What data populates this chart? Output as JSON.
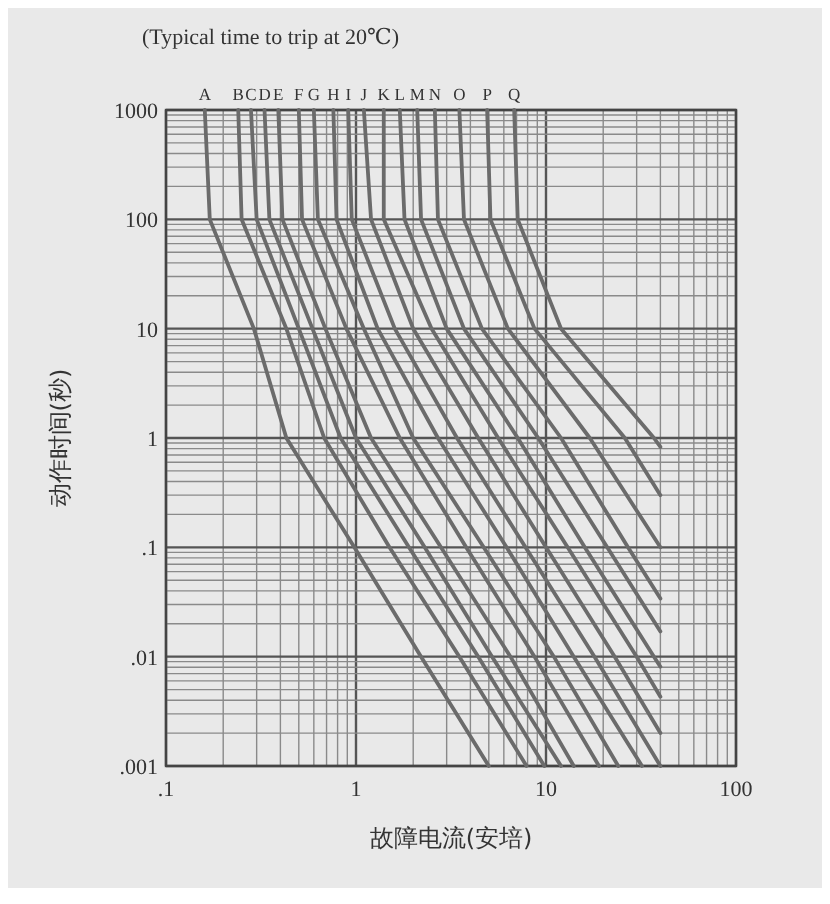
{
  "chart_data": {
    "type": "line",
    "title": "(Typical time to trip at 20℃)",
    "xlabel": "故障电流(安培)",
    "ylabel": "动作时间(秒)",
    "log": "xy",
    "grid": true,
    "xlim": [
      0.1,
      100
    ],
    "ylim": [
      0.001,
      1000
    ],
    "xticks": [
      {
        "value": 0.1,
        "label": ".1"
      },
      1,
      10,
      100
    ],
    "yticks": [
      {
        "value": 0.001,
        "label": ".001"
      },
      {
        "value": 0.01,
        "label": ".01"
      },
      {
        "value": 0.1,
        "label": ".1"
      },
      1,
      10,
      100,
      1000
    ],
    "series": [
      {
        "name": "A",
        "color": "#6b6b6b",
        "x": [
          0.16,
          0.17,
          0.29,
          0.43,
          0.98,
          2.2,
          5.0
        ],
        "values": [
          1000,
          100,
          10,
          1,
          0.1,
          0.01,
          0.001
        ]
      },
      {
        "name": "B",
        "color": "#6b6b6b",
        "x": [
          0.24,
          0.25,
          0.43,
          0.68,
          1.5,
          3.5,
          7.9
        ],
        "values": [
          1000,
          100,
          10,
          1,
          0.1,
          0.01,
          0.001
        ]
      },
      {
        "name": "C",
        "color": "#6b6b6b",
        "x": [
          0.28,
          0.3,
          0.5,
          0.83,
          1.9,
          4.4,
          9.8
        ],
        "values": [
          1000,
          100,
          10,
          1,
          0.1,
          0.01,
          0.001
        ]
      },
      {
        "name": "D",
        "color": "#6b6b6b",
        "x": [
          0.33,
          0.35,
          0.59,
          1.0,
          2.3,
          5.2,
          12
        ],
        "values": [
          1000,
          100,
          10,
          1,
          0.1,
          0.01,
          0.001
        ]
      },
      {
        "name": "E",
        "color": "#6b6b6b",
        "x": [
          0.39,
          0.41,
          0.69,
          1.2,
          2.8,
          6.5,
          14
        ],
        "values": [
          1000,
          100,
          10,
          1,
          0.1,
          0.01,
          0.001
        ]
      },
      {
        "name": "F",
        "color": "#6b6b6b",
        "x": [
          0.5,
          0.52,
          0.89,
          1.7,
          3.8,
          8.7,
          19
        ],
        "values": [
          1000,
          100,
          10,
          1,
          0.1,
          0.01,
          0.001
        ]
      },
      {
        "name": "G",
        "color": "#6b6b6b",
        "x": [
          0.6,
          0.63,
          1.1,
          2.0,
          4.7,
          11,
          24
        ],
        "values": [
          1000,
          100,
          10,
          1,
          0.1,
          0.01,
          0.001
        ]
      },
      {
        "name": "H",
        "color": "#6b6b6b",
        "x": [
          0.76,
          0.79,
          1.3,
          2.7,
          6.2,
          14,
          32
        ],
        "values": [
          1000,
          100,
          10,
          1,
          0.1,
          0.01,
          0.001
        ]
      },
      {
        "name": "I",
        "color": "#6b6b6b",
        "x": [
          0.91,
          0.95,
          1.6,
          3.4,
          7.8,
          18,
          40
        ],
        "values": [
          1000,
          100,
          10,
          1,
          0.1,
          0.01,
          0.001
        ]
      },
      {
        "name": "J",
        "color": "#6b6b6b",
        "x": [
          1.1,
          1.2,
          2.0,
          4.4,
          10,
          23,
          40
        ],
        "values": [
          1000,
          100,
          10,
          1,
          0.1,
          0.01,
          0.002
        ]
      },
      {
        "name": "K",
        "color": "#6b6b6b",
        "x": [
          1.4,
          1.4,
          2.5,
          5.6,
          13,
          30,
          40
        ],
        "values": [
          1000,
          100,
          10,
          1,
          0.1,
          0.01,
          0.0043
        ]
      },
      {
        "name": "L",
        "color": "#6b6b6b",
        "x": [
          1.7,
          1.8,
          3.0,
          7.1,
          16,
          37,
          40
        ],
        "values": [
          1000,
          100,
          10,
          1,
          0.1,
          0.01,
          0.0081
        ]
      },
      {
        "name": "M",
        "color": "#6b6b6b",
        "x": [
          2.1,
          2.2,
          3.7,
          9.1,
          21,
          40
        ],
        "values": [
          1000,
          100,
          10,
          1,
          0.1,
          0.017
        ]
      },
      {
        "name": "N",
        "color": "#6b6b6b",
        "x": [
          2.6,
          2.7,
          4.6,
          12,
          27,
          40
        ],
        "values": [
          1000,
          100,
          10,
          1,
          0.1,
          0.034
        ]
      },
      {
        "name": "O",
        "color": "#6b6b6b",
        "x": [
          3.5,
          3.7,
          6.3,
          17,
          40
        ],
        "values": [
          1000,
          100,
          10,
          1,
          0.1
        ]
      },
      {
        "name": "P",
        "color": "#6b6b6b",
        "x": [
          4.9,
          5.1,
          8.7,
          26,
          40
        ],
        "values": [
          1000,
          100,
          10,
          1,
          0.3
        ]
      },
      {
        "name": "Q",
        "color": "#6b6b6b",
        "x": [
          6.8,
          7.1,
          12,
          37,
          40
        ],
        "values": [
          1000,
          100,
          10,
          1,
          0.83
        ]
      }
    ]
  }
}
